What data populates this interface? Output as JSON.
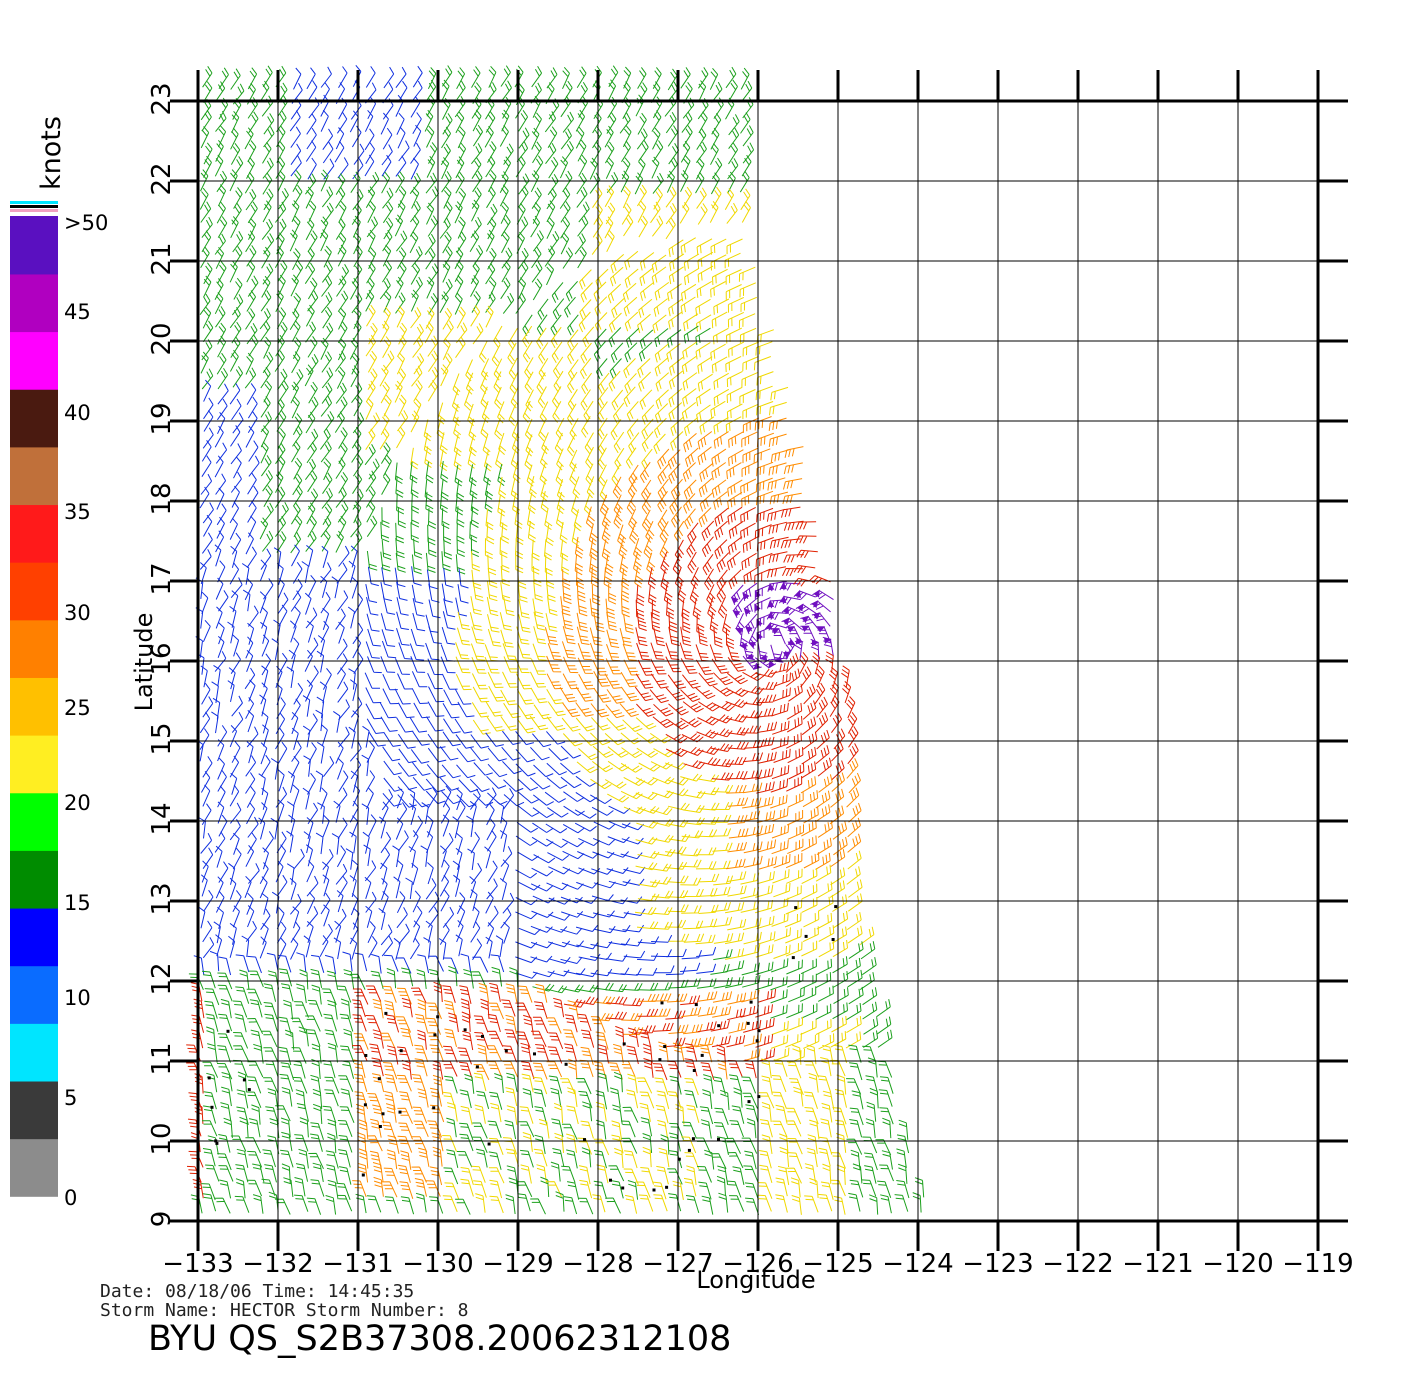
{
  "colorbar": {
    "unit_label": "knots",
    "labels": [
      "0",
      "5",
      "10",
      "15",
      "20",
      "25",
      "30",
      "35",
      "40",
      "45",
      ">50"
    ],
    "colors": [
      "#8c8c8c",
      "#3a3a3a",
      "#00e5ff",
      "#0a6cff",
      "#0000ff",
      "#008c00",
      "#00ff00",
      "#ffee22",
      "#ffc000",
      "#ff8000",
      "#ff4000",
      "#ff1a1a",
      "#c0703a",
      "#4a1a10",
      "#ff00ff",
      "#b000c0",
      "#5a10c0"
    ]
  },
  "map": {
    "xlabel": "Longitude",
    "ylabel": "Latitude",
    "lon_ticks": [
      "−133",
      "−132",
      "−131",
      "−130",
      "−129",
      "−128",
      "−127",
      "−126",
      "−125",
      "−124",
      "−123",
      "−122",
      "−121",
      "−120",
      "−119"
    ],
    "lat_ticks": [
      "9",
      "10",
      "11",
      "12",
      "13",
      "14",
      "15",
      "16",
      "17",
      "18",
      "19",
      "20",
      "21",
      "22",
      "23"
    ],
    "lon_range": [
      -133,
      -119
    ],
    "lat_range": [
      9,
      23
    ],
    "storm_center": {
      "lon": -125.8,
      "lat": 16.2
    },
    "speed_legend_colors": {
      "calm": "#1030e0",
      "light": "#1ca01c",
      "moderate": "#f0d800",
      "strong": "#ff8c00",
      "gale": "#e02000",
      "storm": "#7010c0"
    }
  },
  "footer": {
    "date_line": "Date: 08/18/06   Time: 14:45:35",
    "storm_line": "Storm Name: HECTOR   Storm Number: 8",
    "file_id": "BYU QS_S2B37308.20062312108"
  }
}
